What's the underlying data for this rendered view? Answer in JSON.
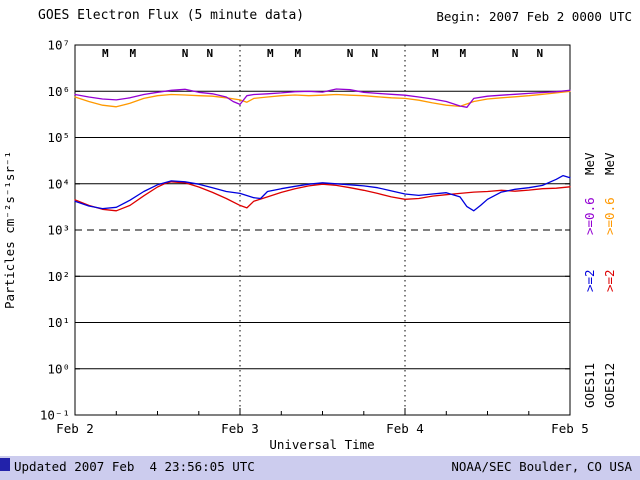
{
  "header": {
    "title": "GOES Electron Flux (5 minute data)",
    "begin": "Begin: 2007 Feb 2 0000 UTC"
  },
  "footer": {
    "updated": "Updated 2007 Feb  4 23:56:05 UTC",
    "credit": "NOAA/SEC Boulder, CO USA",
    "bar_color": "#ccccee",
    "link_square_color": "#2222aa"
  },
  "right_legend": [
    {
      "satellite": "GOES11",
      "x": 594,
      "e2": ">=2",
      "e2_color": "#0000dd",
      "e06": ">=0.6",
      "e06_color": "#9400d3",
      "unit": "MeV"
    },
    {
      "satellite": "GOES12",
      "x": 614,
      "e2": ">=2",
      "e2_color": "#dd0000",
      "e06": ">=0.6",
      "e06_color": "#ff9900",
      "unit": "MeV"
    }
  ],
  "chart_data": {
    "type": "line",
    "title": "GOES Electron Flux (5 minute data)",
    "xlabel": "Universal Time",
    "ylabel": "Particles cm⁻²s⁻¹sr⁻¹",
    "x_unit": "hours since 2007 Feb 2 0000 UTC",
    "xlim": [
      0,
      72
    ],
    "ylim_log10": [
      -1,
      7
    ],
    "x_ticks": [
      {
        "hour": 0,
        "label": "Feb 2"
      },
      {
        "hour": 24,
        "label": "Feb 3"
      },
      {
        "hour": 48,
        "label": "Feb 4"
      },
      {
        "hour": 72,
        "label": "Feb 5"
      }
    ],
    "y_tick_exponents": [
      7,
      6,
      5,
      4,
      3,
      2,
      1,
      0,
      -1
    ],
    "y_tick_labels": [
      "10⁷",
      "10⁶",
      "10⁵",
      "10⁴",
      "10³",
      "10²",
      "10¹",
      "10⁰",
      "10⁻¹"
    ],
    "solid_gridline_exponents": [
      6,
      5,
      4,
      2,
      1,
      0
    ],
    "dashed_gridline_exponents": [
      3
    ],
    "vertical_dotted_hours": [
      24,
      48
    ],
    "markers": [
      {
        "hour": 4.4,
        "letter": "M",
        "color": "#dd0000"
      },
      {
        "hour": 8.4,
        "letter": "M",
        "color": "#0000dd"
      },
      {
        "hour": 16.0,
        "letter": "N",
        "color": "#dd0000"
      },
      {
        "hour": 19.6,
        "letter": "N",
        "color": "#0000dd"
      },
      {
        "hour": 28.4,
        "letter": "M",
        "color": "#dd0000"
      },
      {
        "hour": 32.4,
        "letter": "M",
        "color": "#0000dd"
      },
      {
        "hour": 40.0,
        "letter": "N",
        "color": "#dd0000"
      },
      {
        "hour": 43.6,
        "letter": "N",
        "color": "#0000dd"
      },
      {
        "hour": 52.4,
        "letter": "M",
        "color": "#dd0000"
      },
      {
        "hour": 56.4,
        "letter": "M",
        "color": "#0000dd"
      },
      {
        "hour": 64.0,
        "letter": "N",
        "color": "#dd0000"
      },
      {
        "hour": 67.6,
        "letter": "N",
        "color": "#0000dd"
      }
    ],
    "series": [
      {
        "id": "goes12-e06",
        "name": "GOES12 >=0.6 MeV",
        "color": "#ff9900",
        "points": [
          [
            0,
            750000
          ],
          [
            2,
            600000
          ],
          [
            4,
            500000
          ],
          [
            6,
            460000
          ],
          [
            8,
            550000
          ],
          [
            10,
            700000
          ],
          [
            12,
            800000
          ],
          [
            14,
            850000
          ],
          [
            16,
            830000
          ],
          [
            18,
            800000
          ],
          [
            20,
            780000
          ],
          [
            22,
            720000
          ],
          [
            24,
            650000
          ],
          [
            25,
            580000
          ],
          [
            26,
            700000
          ],
          [
            28,
            750000
          ],
          [
            30,
            800000
          ],
          [
            32,
            830000
          ],
          [
            34,
            800000
          ],
          [
            36,
            820000
          ],
          [
            38,
            850000
          ],
          [
            40,
            820000
          ],
          [
            42,
            800000
          ],
          [
            44,
            760000
          ],
          [
            46,
            720000
          ],
          [
            48,
            700000
          ],
          [
            50,
            640000
          ],
          [
            52,
            560000
          ],
          [
            54,
            500000
          ],
          [
            56,
            470000
          ],
          [
            58,
            600000
          ],
          [
            60,
            680000
          ],
          [
            62,
            720000
          ],
          [
            64,
            760000
          ],
          [
            66,
            800000
          ],
          [
            68,
            860000
          ],
          [
            70,
            920000
          ],
          [
            72,
            1000000
          ]
        ]
      },
      {
        "id": "goes11-e06",
        "name": "GOES11 >=0.6 MeV",
        "color": "#9400d3",
        "points": [
          [
            0,
            850000
          ],
          [
            2,
            750000
          ],
          [
            4,
            680000
          ],
          [
            6,
            650000
          ],
          [
            8,
            720000
          ],
          [
            10,
            850000
          ],
          [
            12,
            950000
          ],
          [
            14,
            1050000
          ],
          [
            16,
            1100000
          ],
          [
            18,
            950000
          ],
          [
            20,
            880000
          ],
          [
            22,
            750000
          ],
          [
            23,
            600000
          ],
          [
            24,
            520000
          ],
          [
            25,
            800000
          ],
          [
            26,
            850000
          ],
          [
            28,
            880000
          ],
          [
            30,
            920000
          ],
          [
            32,
            980000
          ],
          [
            34,
            1000000
          ],
          [
            36,
            960000
          ],
          [
            38,
            1120000
          ],
          [
            40,
            1080000
          ],
          [
            42,
            950000
          ],
          [
            44,
            900000
          ],
          [
            46,
            860000
          ],
          [
            48,
            820000
          ],
          [
            50,
            750000
          ],
          [
            52,
            680000
          ],
          [
            54,
            600000
          ],
          [
            56,
            480000
          ],
          [
            57,
            450000
          ],
          [
            58,
            700000
          ],
          [
            60,
            780000
          ],
          [
            62,
            820000
          ],
          [
            64,
            860000
          ],
          [
            66,
            900000
          ],
          [
            68,
            940000
          ],
          [
            70,
            980000
          ],
          [
            72,
            1050000
          ]
        ]
      },
      {
        "id": "goes12-e2",
        "name": "GOES12 >=2 MeV",
        "color": "#dd0000",
        "points": [
          [
            0,
            4500
          ],
          [
            2,
            3400
          ],
          [
            4,
            2800
          ],
          [
            6,
            2600
          ],
          [
            8,
            3400
          ],
          [
            10,
            5500
          ],
          [
            12,
            8500
          ],
          [
            13,
            10000
          ],
          [
            14,
            11000
          ],
          [
            16,
            10500
          ],
          [
            18,
            8500
          ],
          [
            20,
            6500
          ],
          [
            22,
            4800
          ],
          [
            24,
            3400
          ],
          [
            25,
            3000
          ],
          [
            26,
            4200
          ],
          [
            28,
            5200
          ],
          [
            30,
            6500
          ],
          [
            32,
            7800
          ],
          [
            34,
            9000
          ],
          [
            36,
            9800
          ],
          [
            38,
            9200
          ],
          [
            40,
            8200
          ],
          [
            42,
            7200
          ],
          [
            44,
            6200
          ],
          [
            46,
            5200
          ],
          [
            48,
            4600
          ],
          [
            50,
            4800
          ],
          [
            52,
            5400
          ],
          [
            54,
            5800
          ],
          [
            56,
            6200
          ],
          [
            58,
            6600
          ],
          [
            60,
            6800
          ],
          [
            62,
            7200
          ],
          [
            64,
            6900
          ],
          [
            66,
            7300
          ],
          [
            68,
            7800
          ],
          [
            70,
            8000
          ],
          [
            72,
            8600
          ]
        ]
      },
      {
        "id": "goes11-e2",
        "name": "GOES11 >=2 MeV",
        "color": "#0000dd",
        "points": [
          [
            0,
            4200
          ],
          [
            2,
            3300
          ],
          [
            4,
            2900
          ],
          [
            6,
            3100
          ],
          [
            8,
            4400
          ],
          [
            10,
            6800
          ],
          [
            12,
            9500
          ],
          [
            14,
            11500
          ],
          [
            16,
            11000
          ],
          [
            18,
            9800
          ],
          [
            20,
            8200
          ],
          [
            22,
            6800
          ],
          [
            24,
            6200
          ],
          [
            26,
            5000
          ],
          [
            27,
            4800
          ],
          [
            28,
            6800
          ],
          [
            30,
            7800
          ],
          [
            32,
            8800
          ],
          [
            34,
            9800
          ],
          [
            36,
            10500
          ],
          [
            38,
            10000
          ],
          [
            40,
            9500
          ],
          [
            42,
            9000
          ],
          [
            44,
            8200
          ],
          [
            46,
            7000
          ],
          [
            48,
            6000
          ],
          [
            50,
            5600
          ],
          [
            52,
            6000
          ],
          [
            54,
            6400
          ],
          [
            56,
            5200
          ],
          [
            57,
            3200
          ],
          [
            58,
            2600
          ],
          [
            59,
            3400
          ],
          [
            60,
            4600
          ],
          [
            62,
            6600
          ],
          [
            64,
            7600
          ],
          [
            66,
            8200
          ],
          [
            68,
            9200
          ],
          [
            70,
            12500
          ],
          [
            71,
            15000
          ],
          [
            72,
            13500
          ]
        ]
      }
    ],
    "legend_position": "right",
    "grid": true
  }
}
